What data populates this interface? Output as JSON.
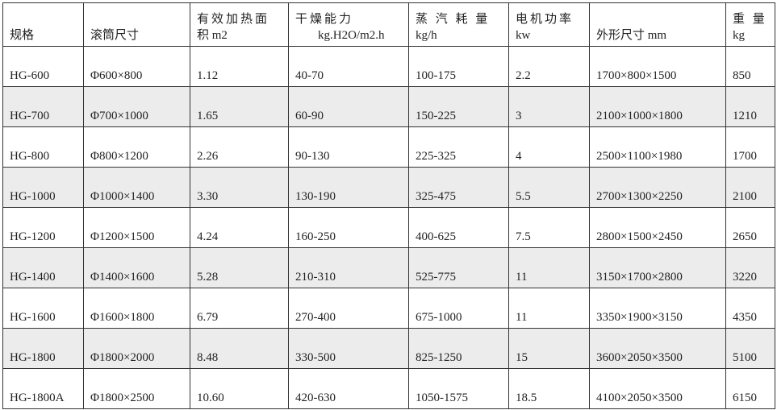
{
  "header": [
    {
      "line1": "",
      "line2": "规格"
    },
    {
      "line1": "",
      "line2": "滚筒尺寸"
    },
    {
      "line1": "有效加热面",
      "line2": "积 m2"
    },
    {
      "line1": "干燥能力",
      "line2": "kg.H2O/m2.h"
    },
    {
      "line1": "蒸 汽 耗 量",
      "line2": "kg/h"
    },
    {
      "line1": "电机功率",
      "line2": "kw"
    },
    {
      "line1": "",
      "line2": "外形尺寸 mm"
    },
    {
      "line1": "重 量",
      "line2": "kg"
    }
  ],
  "rows": [
    [
      "HG-600",
      "Φ600×800",
      "1.12",
      "40-70",
      "100-175",
      "2.2",
      "1700×800×1500",
      "850"
    ],
    [
      "HG-700",
      "Φ700×1000",
      "1.65",
      "60-90",
      "150-225",
      "3",
      "2100×1000×1800",
      "1210"
    ],
    [
      "HG-800",
      "Φ800×1200",
      "2.26",
      "90-130",
      "225-325",
      "4",
      "2500×1100×1980",
      "1700"
    ],
    [
      "HG-1000",
      "Φ1000×1400",
      "3.30",
      "130-190",
      "325-475",
      "5.5",
      "2700×1300×2250",
      "2100"
    ],
    [
      "HG-1200",
      "Φ1200×1500",
      "4.24",
      "160-250",
      "400-625",
      "7.5",
      "2800×1500×2450",
      "2650"
    ],
    [
      "HG-1400",
      "Φ1400×1600",
      "5.28",
      "210-310",
      "525-775",
      "11",
      "3150×1700×2800",
      "3220"
    ],
    [
      "HG-1600",
      "Φ1600×1800",
      "6.79",
      "270-400",
      "675-1000",
      "11",
      "3350×1900×3150",
      "4350"
    ],
    [
      "HG-1800",
      "Φ1800×2000",
      "8.48",
      "330-500",
      "825-1250",
      "15",
      "3600×2050×3500",
      "5100"
    ],
    [
      "HG-1800A",
      "Φ1800×2500",
      "10.60",
      "420-630",
      "1050-1575",
      "18.5",
      "4100×2050×3500",
      "6150"
    ]
  ]
}
